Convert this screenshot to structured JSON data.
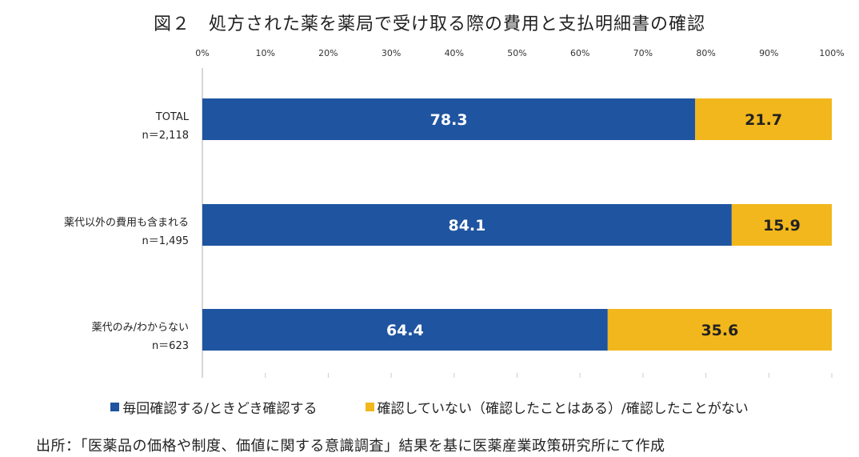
{
  "title": "図２　処方された薬を薬局で受け取る際の費用と支払明細書の確認",
  "source": "出所：「医薬品の価格や制度、価値に関する意識調査」結果を基に医薬産業政策研究所にて作成",
  "chart_data": {
    "type": "bar",
    "orientation": "horizontal",
    "stacked": true,
    "title": "図２　処方された薬を薬局で受け取る際の費用と支払明細書の確認",
    "xlim": [
      0,
      100
    ],
    "x_ticks": [
      "0%",
      "10%",
      "20%",
      "30%",
      "40%",
      "50%",
      "60%",
      "70%",
      "80%",
      "90%",
      "100%"
    ],
    "x_axis_position": "top",
    "grid": false,
    "legend_position": "bottom",
    "categories": [
      {
        "label": "TOTAL",
        "n": "n＝2,118"
      },
      {
        "label": "薬代以外の費用も含まれる",
        "n": "n＝1,495"
      },
      {
        "label": "薬代のみ/わからない",
        "n": "n＝623"
      }
    ],
    "series": [
      {
        "name": "毎回確認する/ときどき確認する",
        "color": "#1f54a0",
        "values": [
          78.3,
          84.1,
          64.4
        ],
        "labels": [
          "78.3",
          "84.1",
          "64.4"
        ]
      },
      {
        "name": "確認していない（確認したことはある）/確認したことがない",
        "color": "#f2b71c",
        "values": [
          21.7,
          15.9,
          35.6
        ],
        "labels": [
          "21.7",
          "15.9",
          "35.6"
        ]
      }
    ]
  }
}
